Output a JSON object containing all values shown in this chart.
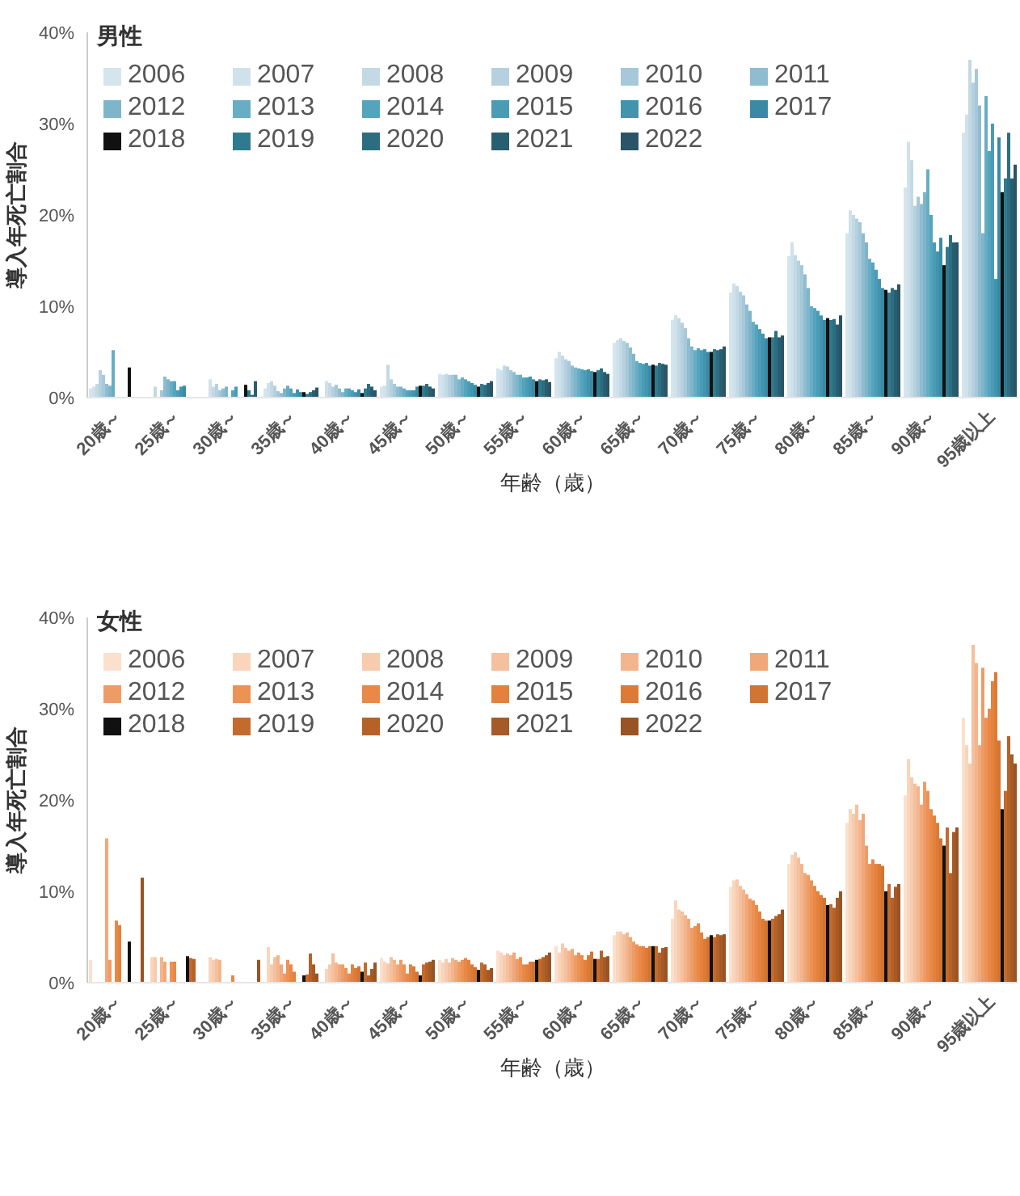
{
  "chart_data": [
    {
      "type": "bar",
      "title": "男性",
      "xlabel": "年齢（歳）",
      "ylabel": "導入年死亡割合",
      "categories": [
        "20歳～",
        "25歳～",
        "30歳～",
        "35歳～",
        "40歳～",
        "45歳～",
        "50歳～",
        "55歳～",
        "60歳～",
        "65歳～",
        "70歳～",
        "75歳～",
        "80歳～",
        "85歳～",
        "90歳～",
        "95歳以上"
      ],
      "ylim": [
        0,
        40
      ],
      "yticks": [
        {
          "value": 0,
          "label": "0%"
        },
        {
          "value": 10,
          "label": "10%"
        },
        {
          "value": 20,
          "label": "20%"
        },
        {
          "value": 30,
          "label": "30%"
        },
        {
          "value": 40,
          "label": "40%"
        }
      ],
      "legend": "top left",
      "series": [
        {
          "name": "2006",
          "color": "#d4e5ee",
          "values": [
            1.0,
            0,
            0,
            1.0,
            0,
            1.2,
            2.6,
            3.2,
            4.3,
            6.0,
            8.5,
            11.5,
            15.5,
            18.0,
            23.0,
            29.0
          ]
        },
        {
          "name": "2007",
          "color": "#cfe1ea",
          "values": [
            1.2,
            0,
            2.0,
            1.6,
            1.8,
            1.3,
            2.5,
            3.0,
            5.0,
            6.3,
            9.0,
            12.5,
            17.0,
            20.5,
            28.0,
            31.0
          ]
        },
        {
          "name": "2008",
          "color": "#c3d9e4",
          "values": [
            1.5,
            1.2,
            1.2,
            1.8,
            1.6,
            3.6,
            2.6,
            3.5,
            4.6,
            6.5,
            8.7,
            12.2,
            15.6,
            20.0,
            26.0,
            37.0
          ]
        },
        {
          "name": "2009",
          "color": "#b5d0de",
          "values": [
            3.0,
            0,
            1.5,
            1.3,
            1.2,
            2.0,
            2.5,
            3.4,
            4.2,
            6.2,
            8.2,
            11.6,
            15.0,
            19.6,
            21.0,
            34.5
          ]
        },
        {
          "name": "2010",
          "color": "#a6c8d9",
          "values": [
            2.5,
            0.8,
            0.8,
            0.7,
            1.4,
            1.5,
            2.5,
            3.0,
            4.0,
            6.0,
            7.6,
            11.2,
            14.5,
            19.2,
            22.0,
            36.0
          ]
        },
        {
          "name": "2011",
          "color": "#8fbccf",
          "values": [
            1.5,
            2.3,
            1.0,
            0.5,
            1.0,
            1.2,
            2.5,
            2.8,
            3.5,
            5.5,
            6.5,
            10.2,
            13.5,
            18.0,
            21.2,
            32.0
          ]
        },
        {
          "name": "2012",
          "color": "#7fb5ca",
          "values": [
            1.3,
            2.0,
            1.2,
            1.0,
            0.6,
            1.2,
            2.0,
            2.5,
            3.3,
            4.8,
            5.6,
            9.5,
            12.0,
            17.0,
            22.5,
            18.0
          ]
        },
        {
          "name": "2013",
          "color": "#68adc4",
          "values": [
            5.2,
            1.8,
            0,
            1.3,
            1.0,
            1.0,
            2.2,
            2.5,
            3.2,
            4.0,
            5.2,
            8.3,
            10.0,
            15.2,
            25.0,
            33.0
          ]
        },
        {
          "name": "2014",
          "color": "#55a4be",
          "values": [
            0,
            1.8,
            0.8,
            1.0,
            1.0,
            0.8,
            2.0,
            2.2,
            3.1,
            3.8,
            5.4,
            8.0,
            9.8,
            14.8,
            20.0,
            27.0
          ]
        },
        {
          "name": "2015",
          "color": "#4a9bb6",
          "values": [
            0,
            0.8,
            1.2,
            0.5,
            0.8,
            0.8,
            1.8,
            2.2,
            3.0,
            3.7,
            5.2,
            7.5,
            9.5,
            14.0,
            17.0,
            30.0
          ]
        },
        {
          "name": "2016",
          "color": "#4293ad",
          "values": [
            0,
            1.2,
            0,
            0.9,
            0.6,
            0.8,
            1.6,
            2.3,
            3.1,
            3.8,
            5.3,
            7.0,
            9.0,
            13.0,
            16.0,
            13.0
          ]
        },
        {
          "name": "2017",
          "color": "#3a8aa5",
          "values": [
            0,
            1.3,
            0,
            0.6,
            0.9,
            1.2,
            1.4,
            2.0,
            2.9,
            3.5,
            5.0,
            6.5,
            8.5,
            12.0,
            17.5,
            28.5
          ]
        },
        {
          "name": "2018",
          "color": "#111111",
          "values": [
            3.3,
            0,
            1.4,
            0.6,
            0.5,
            1.3,
            1.2,
            1.8,
            2.8,
            3.6,
            5.0,
            6.6,
            8.7,
            11.8,
            14.5,
            22.5
          ]
        },
        {
          "name": "2019",
          "color": "#2f7a8f",
          "values": [
            0,
            0,
            0.8,
            0.4,
            1.0,
            1.3,
            1.5,
            2.0,
            3.0,
            3.5,
            5.3,
            6.6,
            8.5,
            11.5,
            16.5,
            24.0
          ]
        },
        {
          "name": "2020",
          "color": "#2c6e80",
          "values": [
            0,
            0,
            0.3,
            0.6,
            1.5,
            1.5,
            1.4,
            1.9,
            3.2,
            3.8,
            5.2,
            7.3,
            8.6,
            12.0,
            17.8,
            29.0
          ]
        },
        {
          "name": "2021",
          "color": "#285f70",
          "values": [
            0,
            0,
            1.8,
            0.8,
            1.2,
            1.2,
            1.6,
            2.0,
            2.8,
            3.7,
            5.3,
            6.6,
            8.0,
            11.8,
            17.0,
            24.0
          ]
        },
        {
          "name": "2022",
          "color": "#2a5566",
          "values": [
            0,
            0,
            0,
            1.1,
            0.8,
            1.0,
            1.8,
            1.7,
            2.6,
            3.6,
            5.6,
            6.8,
            9.0,
            12.4,
            17.0,
            25.5
          ]
        }
      ]
    },
    {
      "type": "bar",
      "title": "女性",
      "xlabel": "年齢（歳）",
      "ylabel": "導入年死亡割合",
      "categories": [
        "20歳～",
        "25歳～",
        "30歳～",
        "35歳～",
        "40歳～",
        "45歳～",
        "50歳～",
        "55歳～",
        "60歳～",
        "65歳～",
        "70歳～",
        "75歳～",
        "80歳～",
        "85歳～",
        "90歳～",
        "95歳以上"
      ],
      "ylim": [
        0,
        40
      ],
      "yticks": [
        {
          "value": 0,
          "label": "0%"
        },
        {
          "value": 10,
          "label": "10%"
        },
        {
          "value": 20,
          "label": "20%"
        },
        {
          "value": 30,
          "label": "30%"
        },
        {
          "value": 40,
          "label": "40%"
        }
      ],
      "legend": "top left",
      "series": [
        {
          "name": "2006",
          "color": "#fbe0cc",
          "values": [
            2.5,
            0,
            0,
            0,
            0,
            2.7,
            2.5,
            3.5,
            4.0,
            5.2,
            7.0,
            10.5,
            13.0,
            17.5,
            20.5,
            29.0
          ]
        },
        {
          "name": "2007",
          "color": "#f9d5bc",
          "values": [
            0,
            2.8,
            2.8,
            3.9,
            1.5,
            2.3,
            2.2,
            3.3,
            3.3,
            5.6,
            9.0,
            11.2,
            14.0,
            19.0,
            24.5,
            26.0
          ]
        },
        {
          "name": "2008",
          "color": "#f7cbad",
          "values": [
            0,
            2.8,
            2.5,
            2.0,
            2.0,
            2.1,
            2.6,
            3.0,
            4.3,
            5.6,
            8.0,
            11.3,
            14.3,
            18.5,
            22.5,
            24.0
          ]
        },
        {
          "name": "2009",
          "color": "#f5c09e",
          "values": [
            0,
            0,
            2.6,
            2.8,
            3.2,
            2.8,
            2.2,
            3.2,
            3.8,
            5.3,
            7.8,
            10.6,
            13.7,
            19.5,
            21.8,
            37.0
          ]
        },
        {
          "name": "2010",
          "color": "#f3b58d",
          "values": [
            0,
            2.8,
            2.5,
            3.0,
            2.2,
            2.5,
            2.7,
            3.0,
            3.5,
            5.5,
            7.4,
            10.2,
            13.0,
            17.8,
            21.5,
            35.0
          ]
        },
        {
          "name": "2011",
          "color": "#f0a87a",
          "values": [
            15.8,
            2.3,
            0,
            2.0,
            2.0,
            2.0,
            2.5,
            3.3,
            3.7,
            5.0,
            7.0,
            9.7,
            12.0,
            18.5,
            19.5,
            26.0
          ]
        },
        {
          "name": "2012",
          "color": "#ee9c66",
          "values": [
            2.5,
            0,
            0,
            1.0,
            2.0,
            2.5,
            2.3,
            2.6,
            3.0,
            4.5,
            6.0,
            9.2,
            11.8,
            15.0,
            22.0,
            34.5
          ]
        },
        {
          "name": "2013",
          "color": "#ec9255",
          "values": [
            0,
            2.3,
            0,
            2.5,
            1.6,
            2.0,
            2.5,
            2.8,
            3.3,
            4.2,
            6.2,
            9.0,
            11.2,
            13.0,
            21.0,
            29.0
          ]
        },
        {
          "name": "2014",
          "color": "#e98847",
          "values": [
            6.8,
            2.3,
            0.8,
            2.0,
            1.0,
            1.0,
            2.7,
            2.0,
            3.0,
            4.0,
            6.5,
            8.5,
            10.6,
            13.5,
            19.0,
            30.0
          ]
        },
        {
          "name": "2015",
          "color": "#e4813c",
          "values": [
            6.3,
            0,
            0,
            1.2,
            2.0,
            2.0,
            2.5,
            2.0,
            2.5,
            4.0,
            5.5,
            7.8,
            10.0,
            13.0,
            18.3,
            33.0
          ]
        },
        {
          "name": "2016",
          "color": "#dc7a36",
          "values": [
            0,
            0,
            0,
            0,
            1.6,
            1.8,
            2.0,
            2.3,
            3.0,
            3.8,
            4.8,
            7.0,
            9.6,
            13.0,
            17.5,
            34.0
          ]
        },
        {
          "name": "2017",
          "color": "#d27432",
          "values": [
            0,
            0,
            0,
            0,
            1.8,
            1.2,
            1.7,
            2.3,
            3.4,
            4.0,
            5.0,
            6.8,
            9.3,
            12.8,
            15.8,
            26.5
          ]
        },
        {
          "name": "2018",
          "color": "#111111",
          "values": [
            4.5,
            2.9,
            0,
            0.8,
            1.2,
            0.8,
            1.4,
            2.5,
            2.6,
            4.0,
            5.2,
            6.8,
            8.5,
            10.0,
            15.0,
            19.0
          ]
        },
        {
          "name": "2019",
          "color": "#c46a2c",
          "values": [
            0,
            2.7,
            0,
            0.9,
            2.2,
            2.0,
            2.2,
            2.6,
            2.6,
            4.0,
            5.0,
            7.0,
            8.6,
            10.8,
            17.0,
            21.0
          ]
        },
        {
          "name": "2020",
          "color": "#b46228",
          "values": [
            0,
            2.6,
            0,
            3.2,
            0.8,
            2.2,
            2.0,
            2.8,
            3.5,
            3.3,
            5.3,
            7.3,
            8.2,
            9.3,
            12.0,
            27.0
          ]
        },
        {
          "name": "2021",
          "color": "#a65a25",
          "values": [
            0,
            0,
            0,
            2.0,
            1.5,
            2.3,
            1.4,
            3.0,
            2.8,
            3.8,
            5.2,
            7.5,
            9.3,
            10.5,
            16.5,
            25.0
          ]
        },
        {
          "name": "2022",
          "color": "#985424",
          "values": [
            11.5,
            0,
            2.5,
            1.0,
            2.2,
            2.5,
            1.6,
            3.3,
            2.9,
            3.9,
            5.3,
            8.0,
            10.0,
            10.8,
            17.0,
            24.0
          ]
        }
      ]
    }
  ]
}
